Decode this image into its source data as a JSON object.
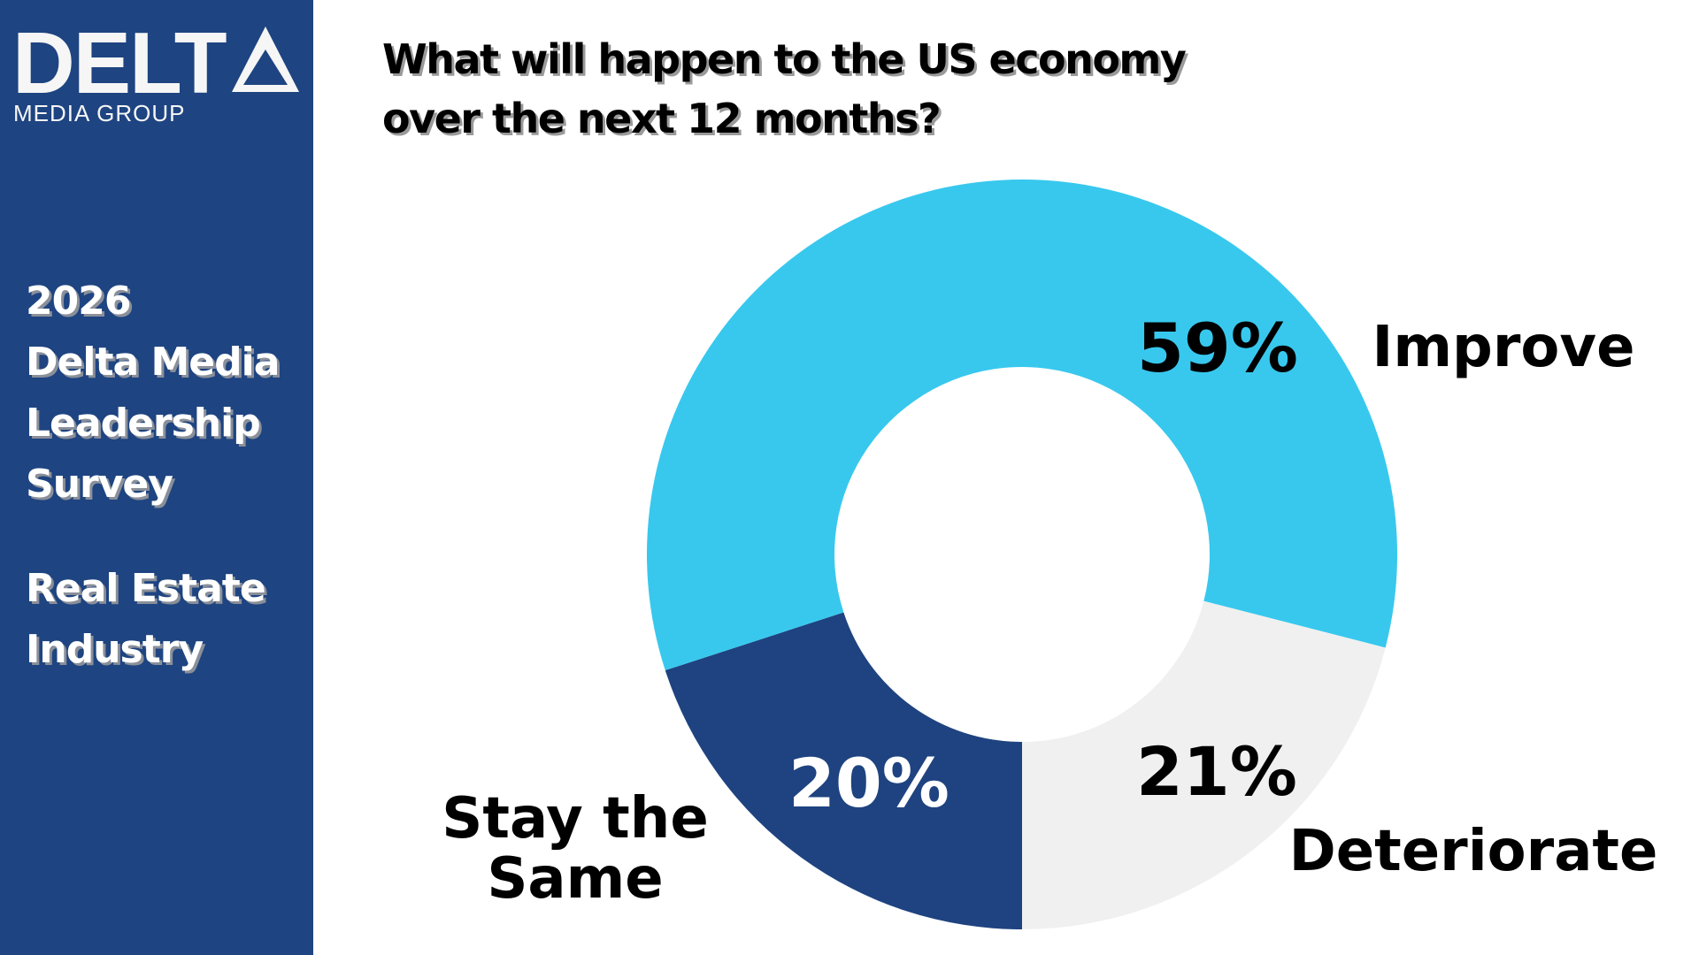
{
  "logo": {
    "word": "DELTA",
    "sub": "MEDIA GROUP"
  },
  "sidebar": {
    "lines1": [
      "2026",
      "Delta Media",
      "Leadership",
      "Survey"
    ],
    "lines2": [
      "Real Estate",
      "Industry"
    ]
  },
  "colors": {
    "sidebar": "#1e4481",
    "improve": "#38c8ee",
    "stay": "#1e4380",
    "deteriorate": "#f0f0f0"
  },
  "chart_data": {
    "type": "pie",
    "donut": true,
    "title": "What will happen to the US economy over the next 12 months?",
    "title_lines": [
      "What will happen to the US economy",
      "over the next 12 months?"
    ],
    "slices": [
      {
        "label": "Stay the Same",
        "label_lines": [
          "Stay the",
          "Same"
        ],
        "value": 20,
        "value_label": "20%",
        "color": "#1e4380",
        "text_color": "#ffffff"
      },
      {
        "label": "Improve",
        "label_lines": [
          "Improve"
        ],
        "value": 59,
        "value_label": "59%",
        "color": "#38c8ee",
        "text_color": "#000000"
      },
      {
        "label": "Deteriorate",
        "label_lines": [
          "Deteriorate"
        ],
        "value": 21,
        "value_label": "21%",
        "color": "#f0f0f0",
        "text_color": "#000000"
      }
    ]
  }
}
